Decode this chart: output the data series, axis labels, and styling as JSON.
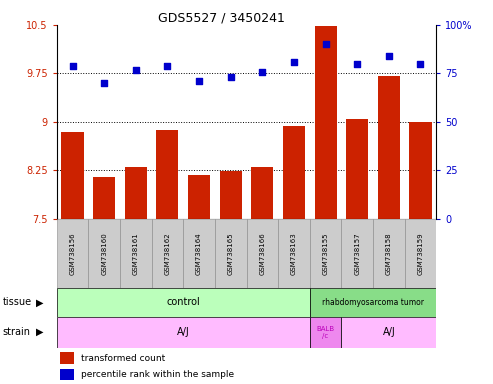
{
  "title": "GDS5527 / 3450241",
  "samples": [
    "GSM738156",
    "GSM738160",
    "GSM738161",
    "GSM738162",
    "GSM738164",
    "GSM738165",
    "GSM738166",
    "GSM738163",
    "GSM738155",
    "GSM738157",
    "GSM738158",
    "GSM738159"
  ],
  "bar_values": [
    8.85,
    8.15,
    8.3,
    8.87,
    8.18,
    8.24,
    8.3,
    8.93,
    10.48,
    9.05,
    9.71,
    9.0
  ],
  "dot_values": [
    79,
    70,
    77,
    79,
    71,
    73,
    76,
    81,
    90,
    80,
    84,
    80
  ],
  "ylim_left": [
    7.5,
    10.5
  ],
  "ylim_right": [
    0,
    100
  ],
  "yticks_left": [
    7.5,
    8.25,
    9.0,
    9.75,
    10.5
  ],
  "ytick_labels_left": [
    "7.5",
    "8.25",
    "9",
    "9.75",
    "10.5"
  ],
  "yticks_right": [
    0,
    25,
    50,
    75,
    100
  ],
  "ytick_labels_right": [
    "0",
    "25",
    "50",
    "75",
    "100%"
  ],
  "hlines": [
    8.25,
    9.0,
    9.75
  ],
  "bar_color": "#cc2200",
  "dot_color": "#0000cc",
  "tissue_color_control": "#bbffbb",
  "tissue_color_rhab": "#88dd88",
  "strain_color_aj": "#ffbbff",
  "strain_color_balb": "#ee88ee",
  "legend_bar_label": "transformed count",
  "legend_dot_label": "percentile rank within the sample",
  "tick_area_color": "#cccccc",
  "n_control": 8,
  "n_total": 12,
  "balb_idx": 8,
  "balb_count": 1
}
